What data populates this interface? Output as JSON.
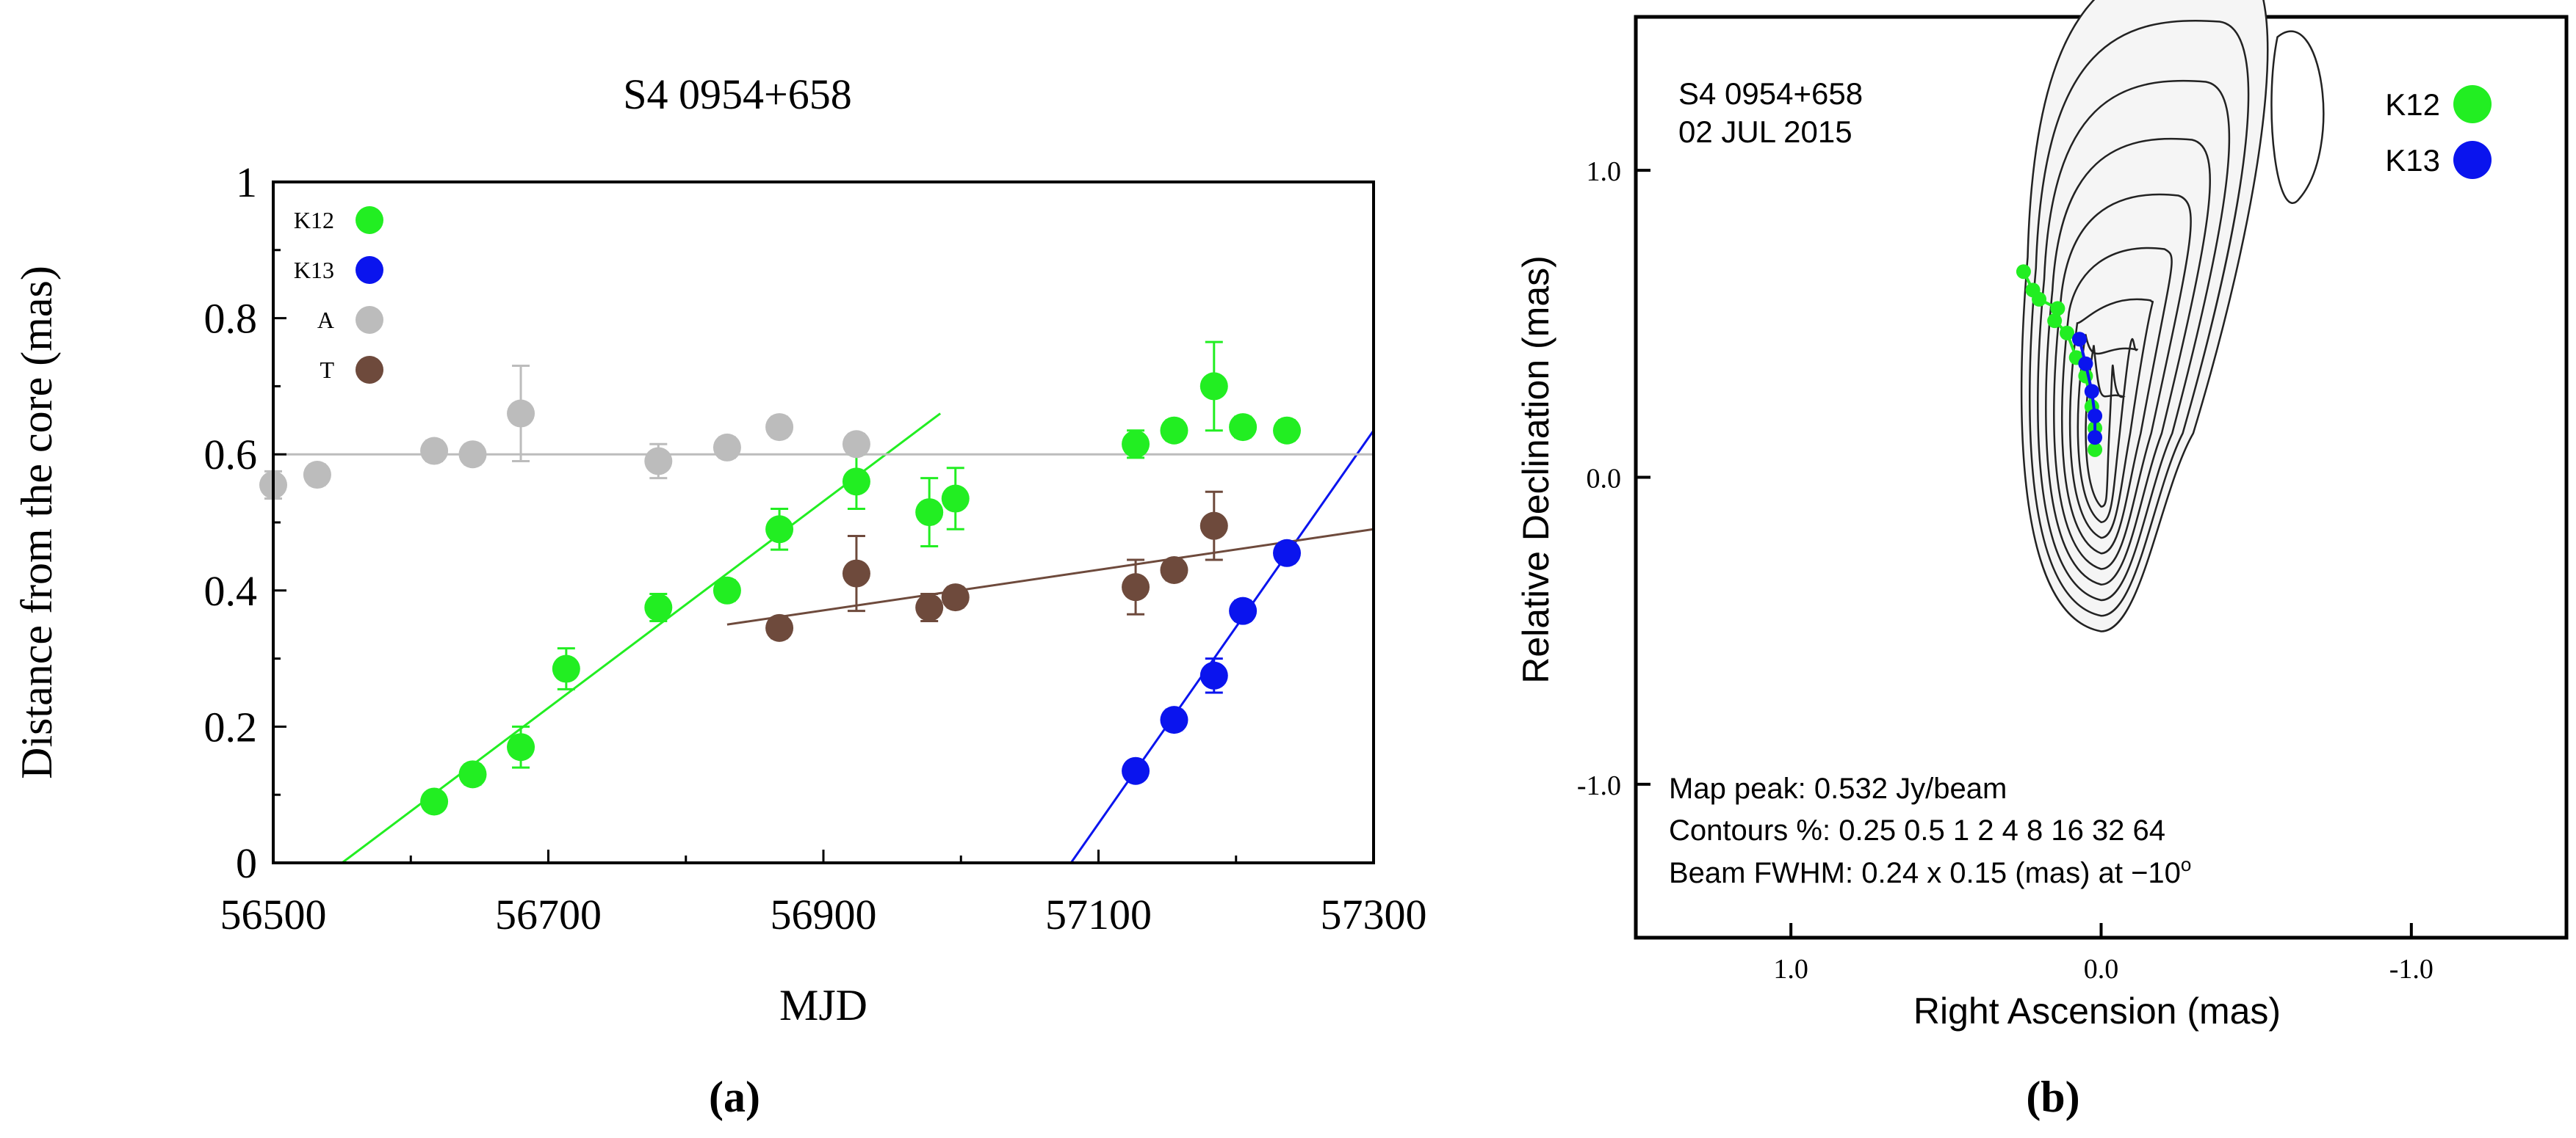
{
  "colors": {
    "k12": "#22ee22",
    "k13": "#0a14ee",
    "a": "#bcbcbc",
    "t": "#6e4a3c",
    "axis": "#000000"
  },
  "chart_data": [
    {
      "type": "scatter",
      "title": "S4 0954+658",
      "xlabel": "MJD",
      "ylabel": "Distance from the core (mas)",
      "panel_label": "(a)",
      "xlim": [
        56500,
        57300
      ],
      "ylim": [
        0,
        1
      ],
      "xticks": [
        {
          "v": 56500,
          "label": "56500"
        },
        {
          "v": 56700,
          "label": "56700"
        },
        {
          "v": 56900,
          "label": "56900"
        },
        {
          "v": 57100,
          "label": "57100"
        },
        {
          "v": 57300,
          "label": "57300"
        }
      ],
      "yticks": [
        {
          "v": 0,
          "label": "0"
        },
        {
          "v": 0.2,
          "label": "0.2"
        },
        {
          "v": 0.4,
          "label": "0.4"
        },
        {
          "v": 0.6,
          "label": "0.6"
        },
        {
          "v": 0.8,
          "label": "0.8"
        },
        {
          "v": 1,
          "label": "1"
        }
      ],
      "grid": false,
      "legend_position": "top-left",
      "series": [
        {
          "name": "K12",
          "color_key": "k12",
          "points": [
            {
              "x": 56617,
              "y": 0.09,
              "err": 0
            },
            {
              "x": 56645,
              "y": 0.13,
              "err": 0.015
            },
            {
              "x": 56680,
              "y": 0.17,
              "err": 0.03
            },
            {
              "x": 56713,
              "y": 0.285,
              "err": 0.03
            },
            {
              "x": 56780,
              "y": 0.375,
              "err": 0.02
            },
            {
              "x": 56830,
              "y": 0.4,
              "err": 0.015
            },
            {
              "x": 56868,
              "y": 0.49,
              "err": 0.03
            },
            {
              "x": 56924,
              "y": 0.56,
              "err": 0.04
            },
            {
              "x": 56977,
              "y": 0.515,
              "err": 0.05
            },
            {
              "x": 56996,
              "y": 0.535,
              "err": 0.045
            },
            {
              "x": 57127,
              "y": 0.615,
              "err": 0.02
            },
            {
              "x": 57155,
              "y": 0.635,
              "err": 0.015
            },
            {
              "x": 57184,
              "y": 0.7,
              "err": 0.065
            },
            {
              "x": 57205,
              "y": 0.64,
              "err": 0.015
            },
            {
              "x": 57237,
              "y": 0.635,
              "err": 0.015
            }
          ],
          "fit": [
            [
              56550,
              0
            ],
            [
              56985,
              0.66
            ]
          ]
        },
        {
          "name": "K13",
          "color_key": "k13",
          "points": [
            {
              "x": 57127,
              "y": 0.135,
              "err": 0
            },
            {
              "x": 57155,
              "y": 0.21,
              "err": 0.015
            },
            {
              "x": 57184,
              "y": 0.275,
              "err": 0.025
            },
            {
              "x": 57205,
              "y": 0.37,
              "err": 0.015
            },
            {
              "x": 57237,
              "y": 0.455,
              "err": 0.015
            }
          ],
          "fit": [
            [
              57080,
              0
            ],
            [
              57300,
              0.635
            ]
          ]
        },
        {
          "name": "A",
          "color_key": "a",
          "points": [
            {
              "x": 56500,
              "y": 0.555,
              "err": 0.02
            },
            {
              "x": 56532,
              "y": 0.57,
              "err": 0.015
            },
            {
              "x": 56617,
              "y": 0.605,
              "err": 0.015
            },
            {
              "x": 56645,
              "y": 0.6,
              "err": 0.015
            },
            {
              "x": 56680,
              "y": 0.66,
              "err": 0.07
            },
            {
              "x": 56780,
              "y": 0.59,
              "err": 0.025
            },
            {
              "x": 56830,
              "y": 0.61,
              "err": 0.015
            },
            {
              "x": 56868,
              "y": 0.64,
              "err": 0.015
            },
            {
              "x": 56924,
              "y": 0.615,
              "err": 0.015
            }
          ],
          "fit": [
            [
              56500,
              0.6
            ],
            [
              57300,
              0.6
            ]
          ]
        },
        {
          "name": "T",
          "color_key": "t",
          "points": [
            {
              "x": 56868,
              "y": 0.345,
              "err": 0.015
            },
            {
              "x": 56924,
              "y": 0.425,
              "err": 0.055
            },
            {
              "x": 56977,
              "y": 0.375,
              "err": 0.02
            },
            {
              "x": 56996,
              "y": 0.39,
              "err": 0.015
            },
            {
              "x": 57127,
              "y": 0.405,
              "err": 0.04
            },
            {
              "x": 57155,
              "y": 0.43,
              "err": 0.015
            },
            {
              "x": 57184,
              "y": 0.495,
              "err": 0.05
            }
          ],
          "fit": [
            [
              56830,
              0.35
            ],
            [
              57300,
              0.49
            ]
          ]
        }
      ]
    },
    {
      "type": "heatmap",
      "panel_label": "(b)",
      "xlabel": "Right Ascension  (mas)",
      "ylabel": "Relative Declination  (mas)",
      "xlim": [
        1.5,
        -1.5
      ],
      "ylim": [
        -1.5,
        1.5
      ],
      "xticks": [
        {
          "v": 1.0,
          "label": "1.0"
        },
        {
          "v": 0.0,
          "label": "0.0"
        },
        {
          "v": -1.0,
          "label": "-1.0"
        }
      ],
      "yticks": [
        {
          "v": 1.0,
          "label": "1.0"
        },
        {
          "v": 0.0,
          "label": "0.0"
        },
        {
          "v": -1.0,
          "label": "-1.0"
        }
      ],
      "source_line1": "S4 0954+658",
      "source_line2": "02 JUL 2015",
      "map_peak": "Map peak: 0.532 Jy/beam",
      "contours_text": "Contours %: 0.25 0.5 1 2 4 8 16 32 64",
      "beam_text": "Beam FWHM: 0.24 x 0.15 (mas) at −10",
      "beam_deg": "o",
      "contour_levels": [
        0.25,
        0.5,
        1,
        2,
        4,
        8,
        16,
        32,
        64
      ],
      "legend_position": "top-right",
      "series": [
        {
          "name": "K12",
          "color_key": "k12",
          "points": [
            [
              0.02,
              0.09
            ],
            [
              0.02,
              0.16
            ],
            [
              0.03,
              0.23
            ],
            [
              0.05,
              0.33
            ],
            [
              0.08,
              0.39
            ],
            [
              0.11,
              0.47
            ],
            [
              0.15,
              0.51
            ],
            [
              0.14,
              0.55
            ],
            [
              0.2,
              0.58
            ],
            [
              0.22,
              0.61
            ],
            [
              0.25,
              0.67
            ]
          ]
        },
        {
          "name": "K13",
          "color_key": "k13",
          "points": [
            [
              0.02,
              0.13
            ],
            [
              0.02,
              0.2
            ],
            [
              0.03,
              0.28
            ],
            [
              0.05,
              0.37
            ],
            [
              0.07,
              0.45
            ]
          ]
        }
      ]
    }
  ]
}
